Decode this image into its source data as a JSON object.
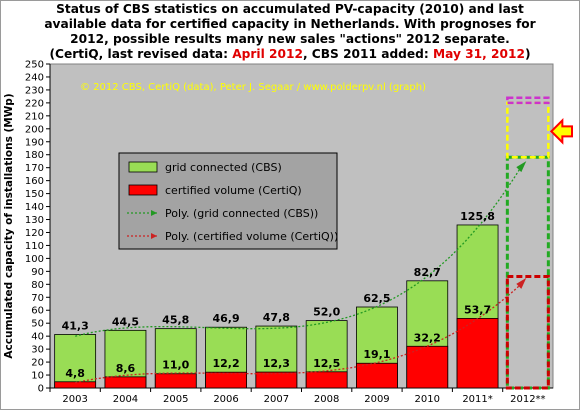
{
  "title": {
    "line1": "Status of CBS statistics on accumulated  PV-capacity (2010) and last",
    "line2": "available data for certified capacity in Netherlands.  With prognoses for",
    "line3": "2012, possible results many new sales \"actions\" 2012 separate.",
    "line4_prefix": "(CertiQ, last revised data: ",
    "line4_date1": "April 2012",
    "line4_mid": ", CBS 2011 added: ",
    "line4_date2": "May 31, 2012",
    "line4_suffix": ")"
  },
  "credit": "© 2012 CBS, CertiQ (data), Peter J. Segaar / www.polderpv.nl (graph)",
  "colors": {
    "plot_bg": "#c0c0c0",
    "grid_connected": "#99dd55",
    "certified": "#ff0000",
    "trend_green": "#229922",
    "trend_red": "#cc2222",
    "dashed_green": "#22aa22",
    "dashed_red": "#cc0000",
    "dashed_yellow": "#ffff00",
    "dashed_magenta": "#cc33cc",
    "arrow_fill": "#ffff00",
    "arrow_stroke": "#ff0000",
    "legend_bg": "#a3a3a3"
  },
  "chart_data": {
    "type": "bar",
    "categories": [
      "2003",
      "2004",
      "2005",
      "2006",
      "2007",
      "2008",
      "2009",
      "2010",
      "2011*",
      "2012**"
    ],
    "series": [
      {
        "name": "grid connected (CBS)",
        "values": [
          41.3,
          44.5,
          45.8,
          46.9,
          47.8,
          52.0,
          62.5,
          82.7,
          125.8,
          null
        ],
        "labels": [
          "41,3",
          "44,5",
          "45,8",
          "46,9",
          "47,8",
          "52,0",
          "62,5",
          "82,7",
          "125,8",
          ""
        ]
      },
      {
        "name": "certified volume (CertiQ)",
        "values": [
          4.8,
          8.6,
          11.0,
          12.2,
          12.3,
          12.5,
          19.1,
          32.2,
          53.7,
          null
        ],
        "labels": [
          "4,8",
          "8,6",
          "11,0",
          "12,2",
          "12,3",
          "12,5",
          "19,1",
          "32,2",
          "53,7",
          ""
        ]
      }
    ],
    "trend_series": [
      {
        "name": "Poly. (grid connected (CBS))"
      },
      {
        "name": "Poly. (certified volume (CertiQ))"
      }
    ],
    "prognosis_2012": {
      "grid_connected_dashed_box": [
        0,
        178
      ],
      "certified_dashed_box": [
        0,
        86
      ],
      "yellow_dashed_box": [
        178,
        220
      ],
      "magenta_dashed_box": [
        220,
        224
      ]
    },
    "ylabel": "Accumulated capacity of installations (MWp)",
    "xlabel": "",
    "ylim": [
      0,
      250
    ],
    "ytick_step": 10,
    "grid": false,
    "legend_position": "upper-left inside plot"
  }
}
